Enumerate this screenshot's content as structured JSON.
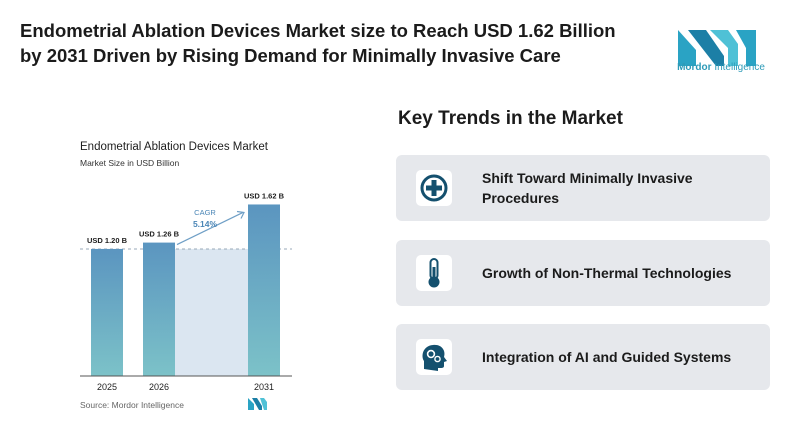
{
  "headline": {
    "line1": "Endometrial Ablation Devices Market size to Reach USD 1.62 Billion",
    "line2": "by 2031 Driven by Rising Demand for Minimally Invasive Care"
  },
  "logo": {
    "name_part1": "Mordor",
    "name_part2": "Intelligence",
    "brand_color": "#2e9bb8"
  },
  "chart_data": {
    "type": "bar",
    "title": "Endometrial Ablation Devices Market",
    "subtitle": "Market Size in USD Billion",
    "categories": [
      "2025",
      "2026",
      "2031"
    ],
    "values": [
      1.2,
      1.26,
      1.62
    ],
    "value_labels": [
      "USD 1.20 B",
      "USD 1.26 B",
      "USD 1.62 B"
    ],
    "cagr_label": "CAGR",
    "cagr_value": "5.14%",
    "ylim": [
      0,
      1.7
    ],
    "grid": false,
    "source": "Source: Mordor Intelligence",
    "colors": {
      "bar_top": "#5b95c0",
      "bar_bottom": "#7cc2c8",
      "band": "#dbe6f1",
      "arrow": "#6f9fc6",
      "cagr_text": "#4b86b6"
    }
  },
  "trends": {
    "title": "Key Trends in the Market",
    "items": [
      {
        "label": "Shift Toward Minimally Invasive Procedures",
        "icon": "medical-cross-icon"
      },
      {
        "label": "Growth of Non-Thermal Technologies",
        "icon": "thermometer-icon"
      },
      {
        "label": "Integration of AI and Guided Systems",
        "icon": "ai-head-icon"
      }
    ],
    "icon_color": "#14506e"
  }
}
